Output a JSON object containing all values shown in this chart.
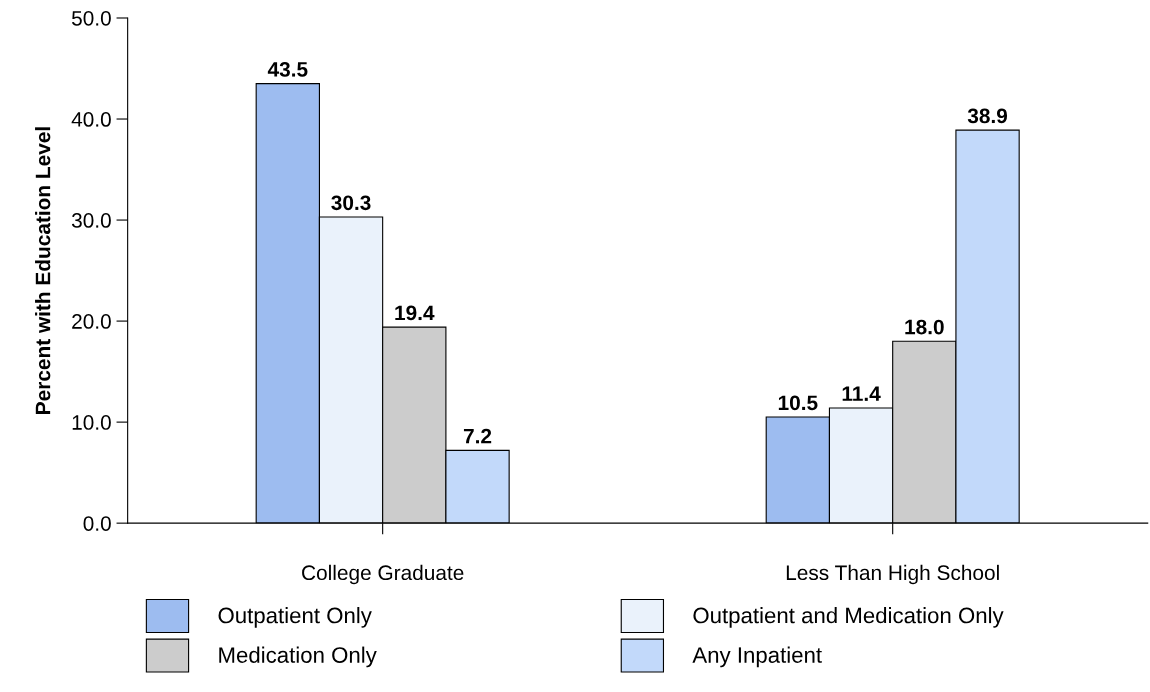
{
  "chart_data": {
    "type": "bar",
    "ylabel": "Percent with Education Level",
    "categories": [
      "College Graduate",
      "Less Than High School"
    ],
    "series": [
      {
        "name": "Outpatient Only",
        "color": "#9dbcf0",
        "values": [
          43.5,
          10.5
        ],
        "value_labels": [
          "43.5",
          "10.5"
        ]
      },
      {
        "name": "Outpatient and Medication Only",
        "color": "#eaf2fb",
        "values": [
          30.3,
          11.4
        ],
        "value_labels": [
          "30.3",
          "11.4"
        ]
      },
      {
        "name": "Medication Only",
        "color": "#cccccc",
        "values": [
          19.4,
          18.0
        ],
        "value_labels": [
          "19.4",
          "18.0"
        ]
      },
      {
        "name": "Any Inpatient",
        "color": "#c2d9fa",
        "values": [
          7.2,
          38.9
        ],
        "value_labels": [
          "7.2",
          "38.9"
        ]
      }
    ],
    "ylim": [
      0,
      50
    ],
    "yticks": [
      {
        "value": 0,
        "label": "0.0"
      },
      {
        "value": 10,
        "label": "10.0"
      },
      {
        "value": 20,
        "label": "20.0"
      },
      {
        "value": 30,
        "label": "30.0"
      },
      {
        "value": 40,
        "label": "40.0"
      },
      {
        "value": 50,
        "label": "50.0"
      }
    ],
    "grid": false,
    "legend": "bottom"
  }
}
